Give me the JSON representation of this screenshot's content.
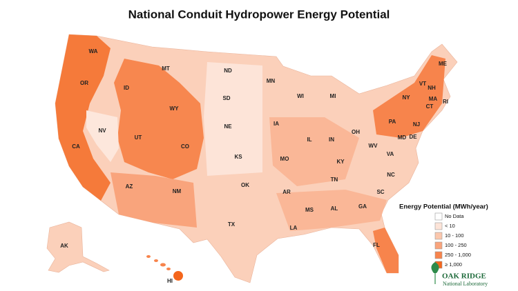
{
  "header": {
    "title": "National Conduit Hydropower Energy Potential"
  },
  "states": [
    "WA",
    "MT",
    "ND",
    "MN",
    "ME",
    "OR",
    "ID",
    "VT",
    "NH",
    "SD",
    "WI",
    "MI",
    "NY",
    "MA",
    "WY",
    "RI",
    "CT",
    "IA",
    "PA",
    "NJ",
    "NV",
    "NE",
    "OH",
    "UT",
    "IL",
    "IN",
    "DE",
    "MD",
    "CA",
    "CO",
    "WV",
    "KS",
    "MO",
    "KY",
    "VA",
    "TN",
    "NC",
    "OK",
    "AR",
    "AZ",
    "NM",
    "SC",
    "GA",
    "MS",
    "AL",
    "TX",
    "LA",
    "FL",
    "AK",
    "HI"
  ],
  "legend": {
    "title": "Energy Potential (MWh/year)",
    "items": [
      {
        "label": "No Data",
        "color": "#ffffff"
      },
      {
        "label": "< 10",
        "color": "#fde4d8"
      },
      {
        "label": "10 - 100",
        "color": "#fbc7ad"
      },
      {
        "label": "100 - 250",
        "color": "#f9a47c"
      },
      {
        "label": "250 - 1,000",
        "color": "#f7844c"
      },
      {
        "label": "≥ 1,000",
        "color": "#f4661c"
      }
    ]
  },
  "logo": {
    "name": "OAK RIDGE",
    "subtitle": "National Laboratory"
  }
}
